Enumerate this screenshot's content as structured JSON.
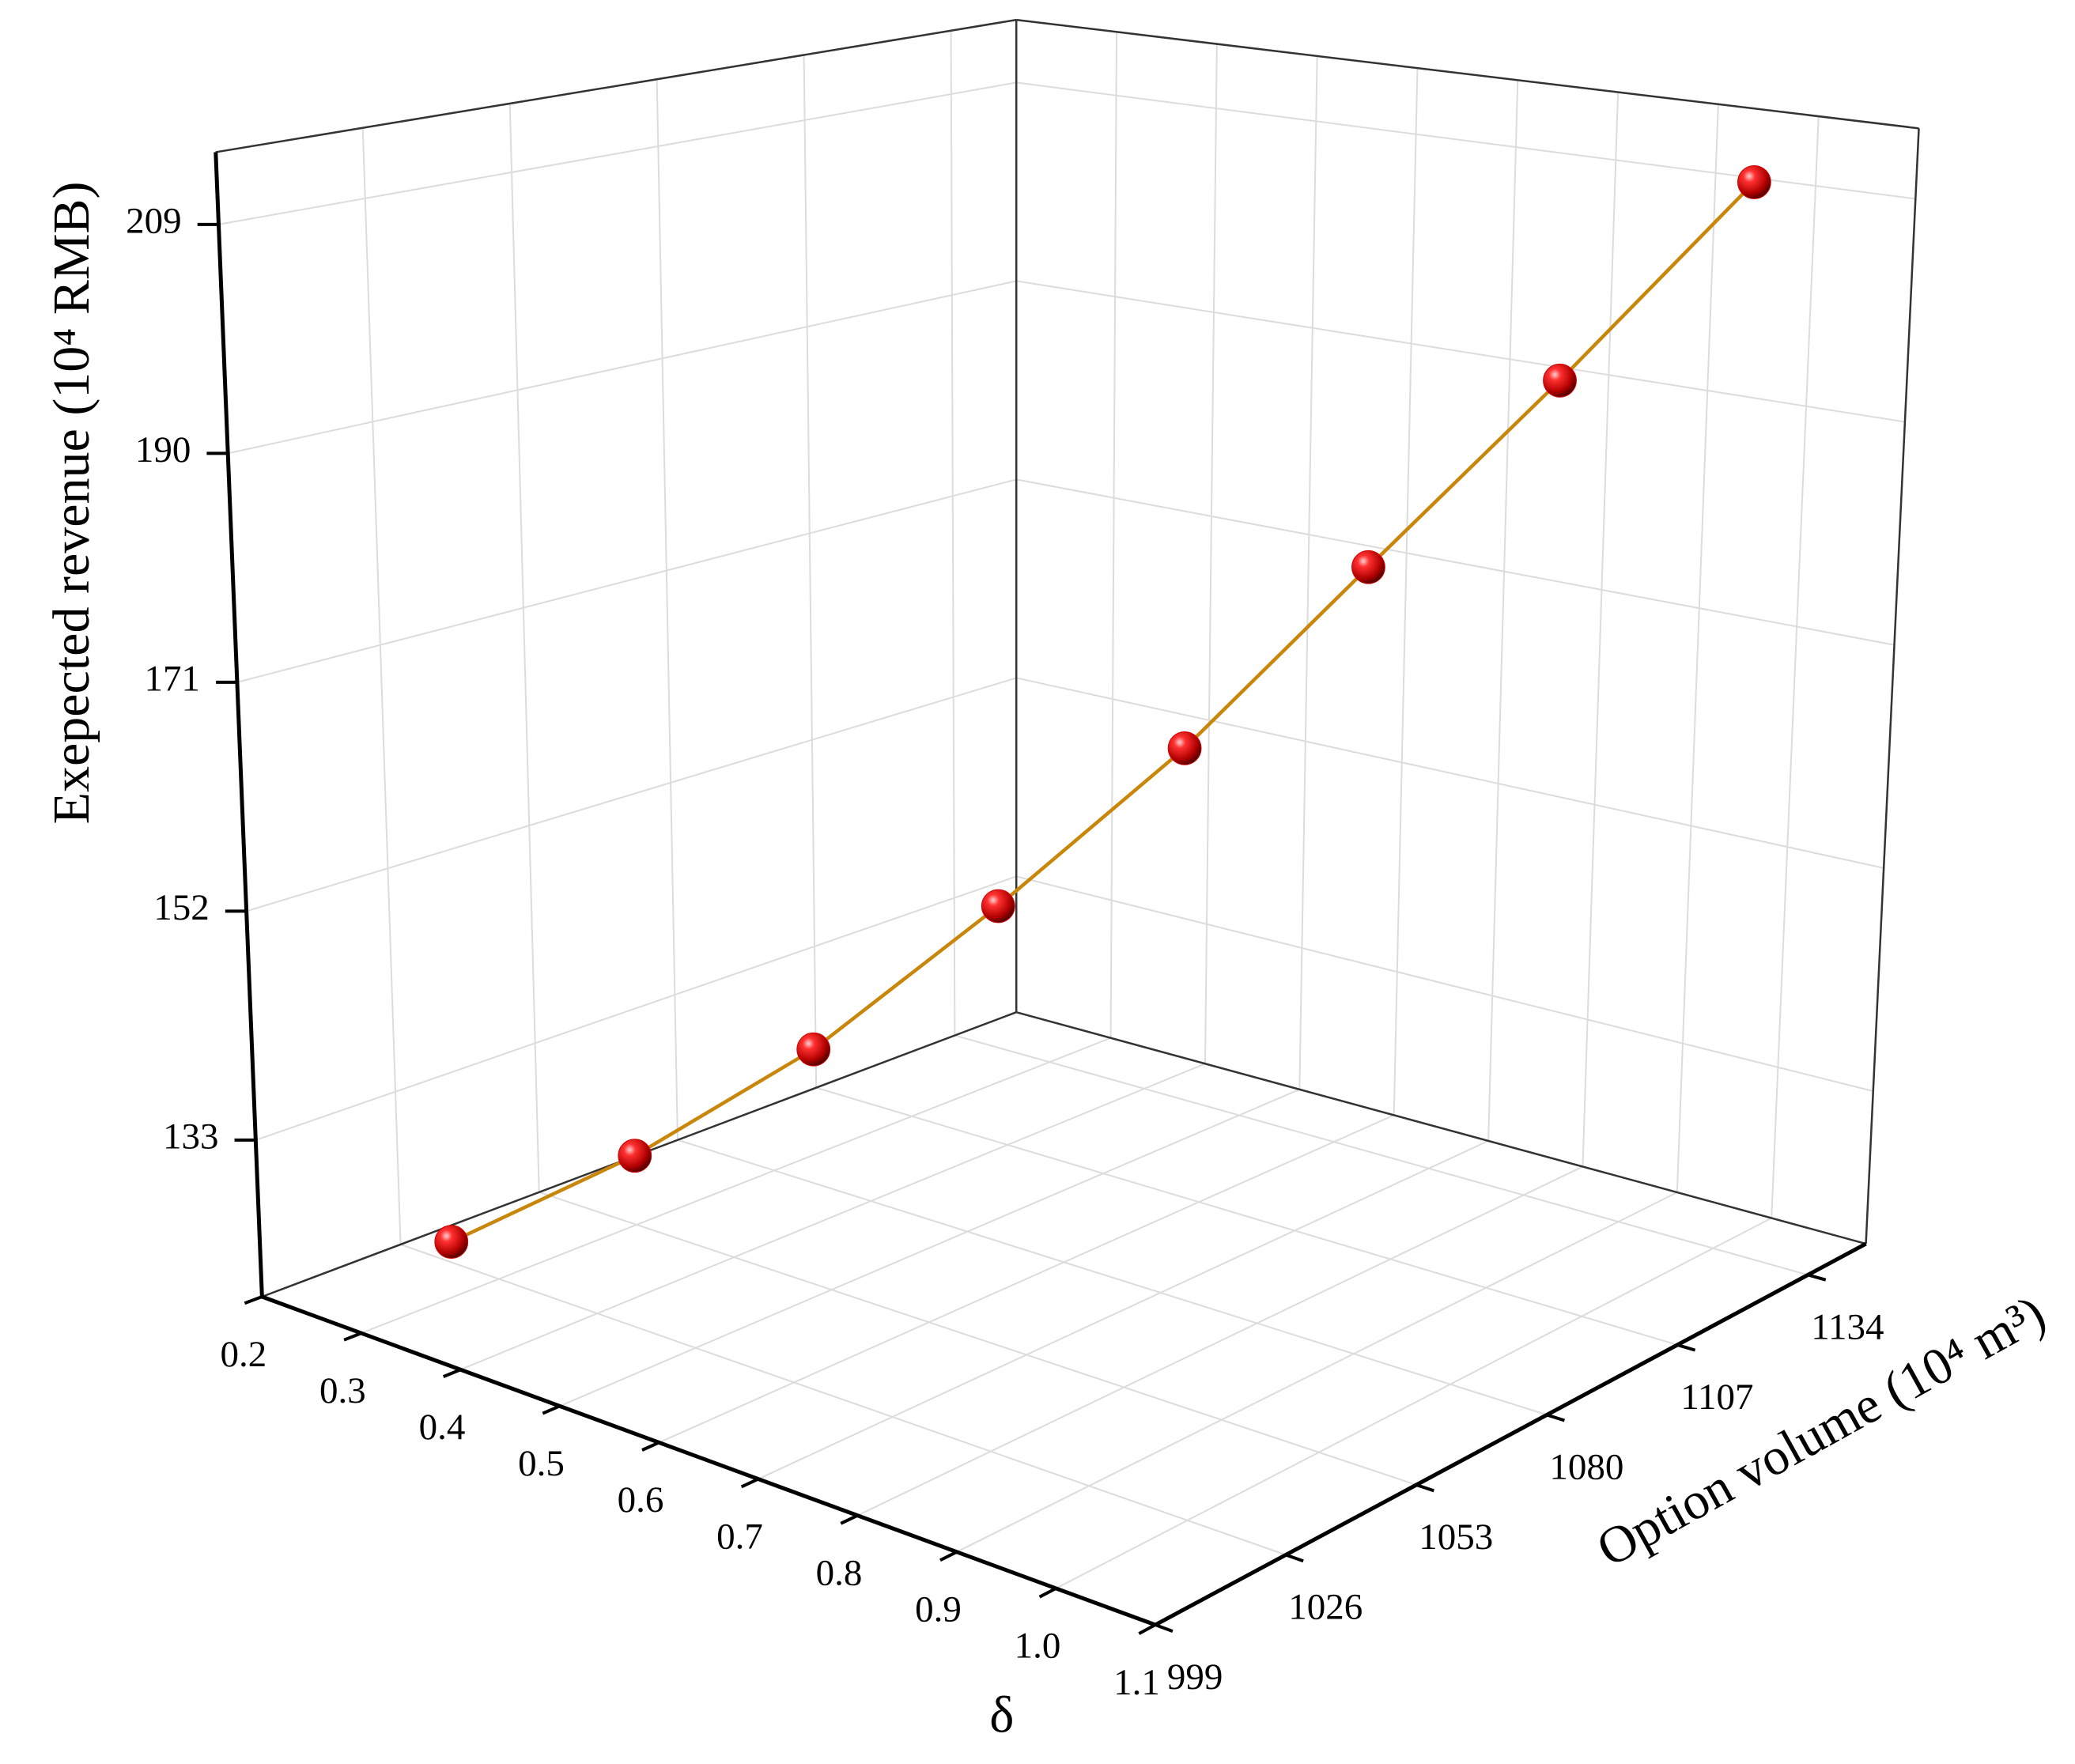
{
  "chart_data": {
    "type": "line3d",
    "xlabel": "δ",
    "ylabel": "Option volume (10⁴ m³)",
    "zlabel": "Exepected  revenue (10⁴ RMB)",
    "x": [
      0.3,
      0.4,
      0.5,
      0.6,
      0.7,
      0.8,
      0.9,
      1.0
    ],
    "y": [
      1017,
      1034,
      1050,
      1067,
      1084,
      1100,
      1117,
      1134
    ],
    "z": [
      124.6,
      131.8,
      140.7,
      152.4,
      165.2,
      180.0,
      195.0,
      210.9
    ],
    "line_color": "#c8860a",
    "marker_color": "#d40000",
    "xlim": [
      0.2,
      1.1
    ],
    "xticks": [
      0.2,
      0.3,
      0.4,
      0.5,
      0.6,
      0.7,
      0.8,
      0.9,
      {
        "value": 1,
        "label": "1.0"
      },
      1.1
    ],
    "ylim": [
      999,
      1146
    ],
    "yticks": [
      999,
      1026,
      1053,
      1080,
      1107,
      1134
    ],
    "zlim": [
      120,
      215
    ],
    "zticks": [
      133,
      152,
      171,
      190,
      209
    ],
    "grid": true
  }
}
